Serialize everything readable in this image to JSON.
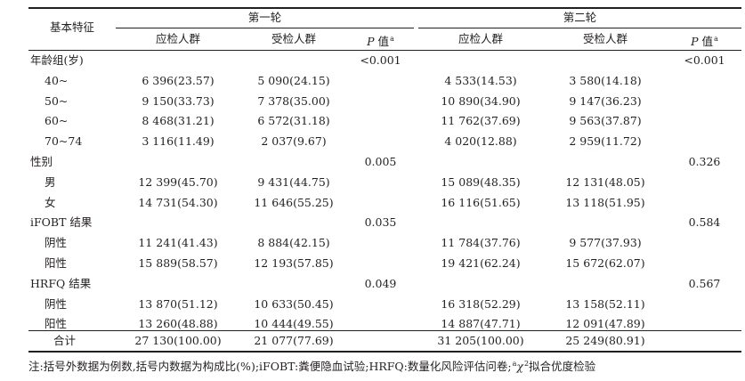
{
  "header": {
    "feature": "基本特征",
    "round1": "第一轮",
    "round2": "第二轮",
    "target_pop": "应检人群",
    "screened_pop": "受检人群",
    "p_italic": "P",
    "p_suffix": " 值",
    "p_sup": "a"
  },
  "rows": [
    {
      "label": "年龄组(岁)",
      "indent": false,
      "r1_target": "",
      "r1_screened": "",
      "r1_p": "<0.001",
      "r2_target": "",
      "r2_screened": "",
      "r2_p": "<0.001"
    },
    {
      "label": "40~",
      "indent": true,
      "r1_target": "6 396(23.57)",
      "r1_screened": "5 090(24.15)",
      "r1_p": "",
      "r2_target": "4 533(14.53)",
      "r2_screened": "3 580(14.18)",
      "r2_p": ""
    },
    {
      "label": "50~",
      "indent": true,
      "r1_target": "9 150(33.73)",
      "r1_screened": "7 378(35.00)",
      "r1_p": "",
      "r2_target": "10 890(34.90)",
      "r2_screened": "9 147(36.23)",
      "r2_p": ""
    },
    {
      "label": "60~",
      "indent": true,
      "r1_target": "8 468(31.21)",
      "r1_screened": "6 572(31.18)",
      "r1_p": "",
      "r2_target": "11 762(37.69)",
      "r2_screened": "9 563(37.87)",
      "r2_p": ""
    },
    {
      "label": "70~74",
      "indent": true,
      "r1_target": "3 116(11.49)",
      "r1_screened": "2 037(9.67)",
      "r1_p": "",
      "r2_target": "4 020(12.88)",
      "r2_screened": "2 959(11.72)",
      "r2_p": ""
    },
    {
      "label": "性别",
      "indent": false,
      "r1_target": "",
      "r1_screened": "",
      "r1_p": "0.005",
      "r2_target": "",
      "r2_screened": "",
      "r2_p": "0.326"
    },
    {
      "label": "男",
      "indent": true,
      "r1_target": "12 399(45.70)",
      "r1_screened": "9 431(44.75)",
      "r1_p": "",
      "r2_target": "15 089(48.35)",
      "r2_screened": "12 131(48.05)",
      "r2_p": ""
    },
    {
      "label": "女",
      "indent": true,
      "r1_target": "14 731(54.30)",
      "r1_screened": "11 646(55.25)",
      "r1_p": "",
      "r2_target": "16 116(51.65)",
      "r2_screened": "13 118(51.95)",
      "r2_p": ""
    },
    {
      "label": "iFOBT 结果",
      "indent": false,
      "r1_target": "",
      "r1_screened": "",
      "r1_p": "0.035",
      "r2_target": "",
      "r2_screened": "",
      "r2_p": "0.584"
    },
    {
      "label": "阴性",
      "indent": true,
      "r1_target": "11 241(41.43)",
      "r1_screened": "8 884(42.15)",
      "r1_p": "",
      "r2_target": "11 784(37.76)",
      "r2_screened": "9 577(37.93)",
      "r2_p": ""
    },
    {
      "label": "阳性",
      "indent": true,
      "r1_target": "15 889(58.57)",
      "r1_screened": "12 193(57.85)",
      "r1_p": "",
      "r2_target": "19 421(62.24)",
      "r2_screened": "15 672(62.07)",
      "r2_p": ""
    },
    {
      "label": "HRFQ 结果",
      "indent": false,
      "r1_target": "",
      "r1_screened": "",
      "r1_p": "0.049",
      "r2_target": "",
      "r2_screened": "",
      "r2_p": "0.567"
    },
    {
      "label": "阴性",
      "indent": true,
      "r1_target": "13 870(51.12)",
      "r1_screened": "10 633(50.45)",
      "r1_p": "",
      "r2_target": "16 318(52.29)",
      "r2_screened": "13 158(52.11)",
      "r2_p": ""
    },
    {
      "label": "阳性",
      "indent": true,
      "r1_target": "13 260(48.88)",
      "r1_screened": "10 444(49.55)",
      "r1_p": "",
      "r2_target": "14 887(47.71)",
      "r2_screened": "12 091(47.89)",
      "r2_p": ""
    }
  ],
  "total": {
    "label": "合计",
    "r1_target": "27 130(100.00)",
    "r1_screened": "21 077(77.69)",
    "r1_p": "",
    "r2_target": "31 205(100.00)",
    "r2_screened": "25 249(80.91)",
    "r2_p": ""
  },
  "note": {
    "text": "注:括号外数据为例数,括号内数据为构成比(%);iFOBT:粪便隐血试验;HRFQ:数量化风险评估问卷;",
    "sup": "a",
    "chi": "χ",
    "chi_sup": "2",
    "tail": "拟合优度检验"
  }
}
